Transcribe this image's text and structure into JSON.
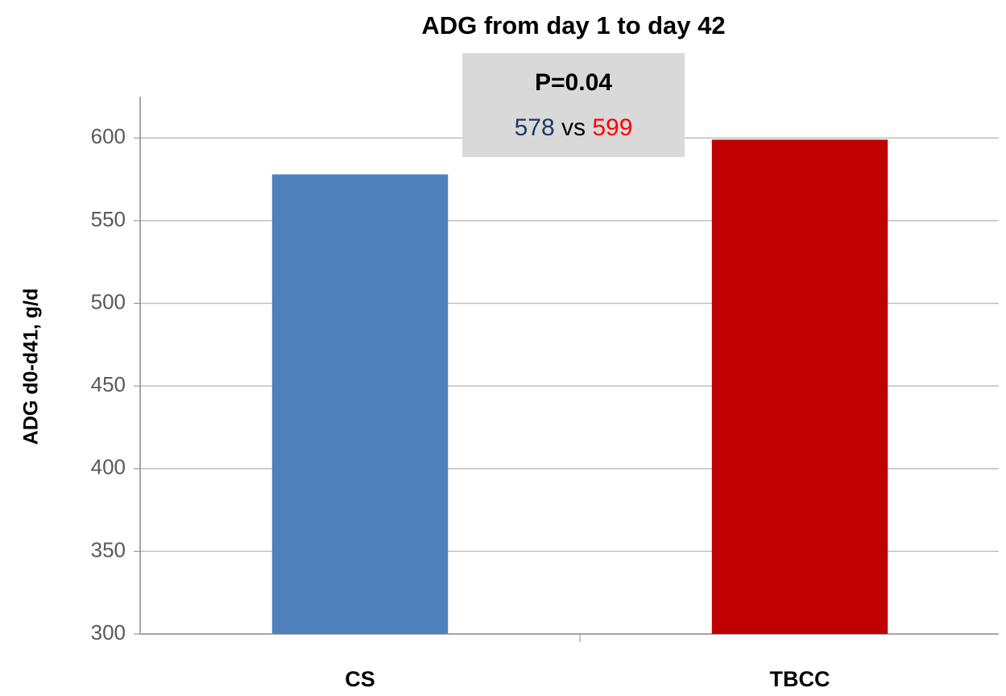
{
  "chart_data": {
    "type": "bar",
    "title": "ADG from day 1 to day 42",
    "y_label": "ADG d0-d41, g/d",
    "categories": [
      "CS",
      "TBCC"
    ],
    "values": [
      578,
      599
    ],
    "colors": [
      "#4f81bd",
      "#c00000"
    ],
    "ylim": [
      300,
      625
    ],
    "yticks": [
      300,
      350,
      400,
      450,
      500,
      550,
      600
    ],
    "grid": true,
    "annotation": {
      "title": "P=0.04",
      "separator": "vs",
      "value_colors": [
        "#1f3864",
        "#ff0000"
      ]
    }
  }
}
